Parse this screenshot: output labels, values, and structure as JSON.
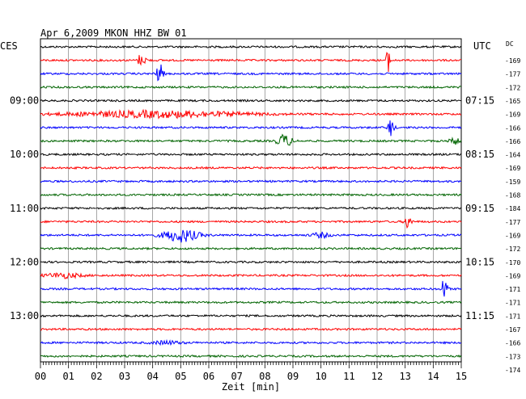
{
  "chart_data": {
    "type": "line",
    "title": "Apr 6,2009   MKON HHZ BW 01",
    "xlabel": "Zeit [min]",
    "ylabel": "",
    "xlim": [
      0,
      15
    ],
    "x_ticks": [
      "00",
      "01",
      "02",
      "03",
      "04",
      "05",
      "06",
      "07",
      "08",
      "09",
      "10",
      "11",
      "12",
      "13",
      "14",
      "15"
    ],
    "left_timezone": "CES",
    "right_timezone": "UTC",
    "dc_label": "DC",
    "left_hour_labels": [
      {
        "row": 4,
        "text": "09:00"
      },
      {
        "row": 8,
        "text": "10:00"
      },
      {
        "row": 12,
        "text": "11:00"
      },
      {
        "row": 16,
        "text": "12:00"
      },
      {
        "row": 20,
        "text": "13:00"
      }
    ],
    "right_hour_labels": [
      {
        "row": 4,
        "text": "07:15"
      },
      {
        "row": 8,
        "text": "08:15"
      },
      {
        "row": 12,
        "text": "09:15"
      },
      {
        "row": 16,
        "text": "10:15"
      },
      {
        "row": 20,
        "text": "11:15"
      }
    ],
    "dc_values": [
      "-169",
      "-177",
      "-172",
      "-165",
      "-169",
      "-166",
      "-166",
      "-164",
      "-169",
      "-159",
      "-168",
      "-184",
      "-177",
      "-169",
      "-172",
      "-170",
      "-169",
      "-171",
      "-171",
      "-171",
      "-167",
      "-166",
      "-173",
      "-174"
    ],
    "trace_colors": [
      "#000000",
      "#ff0000",
      "#0000ff",
      "#006400"
    ],
    "grid": true,
    "events": [
      {
        "row": 1,
        "t": 3.55,
        "amp": 7,
        "width": 0.08
      },
      {
        "row": 1,
        "t": 3.75,
        "amp": 6,
        "width": 0.06
      },
      {
        "row": 1,
        "t": 12.4,
        "amp": 14,
        "width": 0.08
      },
      {
        "row": 2,
        "t": 4.25,
        "amp": 12,
        "width": 0.12
      },
      {
        "row": 5,
        "t": 4.2,
        "amp": 4,
        "width": 3.0
      },
      {
        "row": 6,
        "t": 12.5,
        "amp": 12,
        "width": 0.1
      },
      {
        "row": 7,
        "t": 8.7,
        "amp": 8,
        "width": 0.25
      },
      {
        "row": 7,
        "t": 14.8,
        "amp": 4,
        "width": 0.2
      },
      {
        "row": 13,
        "t": 13.1,
        "amp": 8,
        "width": 0.12
      },
      {
        "row": 14,
        "t": 5.0,
        "amp": 8,
        "width": 0.6
      },
      {
        "row": 14,
        "t": 10.0,
        "amp": 3,
        "width": 0.3
      },
      {
        "row": 17,
        "t": 0.8,
        "amp": 3,
        "width": 0.6
      },
      {
        "row": 18,
        "t": 14.4,
        "amp": 14,
        "width": 0.1
      },
      {
        "row": 22,
        "t": 4.5,
        "amp": 2,
        "width": 0.5
      }
    ]
  }
}
